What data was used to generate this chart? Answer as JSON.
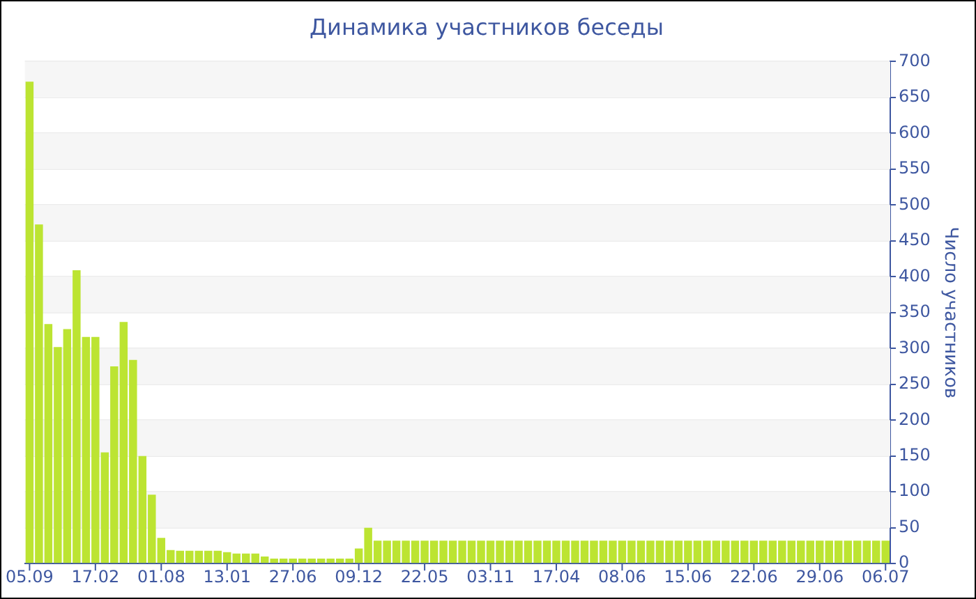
{
  "chart_data": {
    "type": "bar",
    "title": "Динамика участников беседы",
    "ylabel": "Число участников",
    "categories": [
      "05.09",
      null,
      null,
      null,
      null,
      null,
      null,
      "17.02",
      null,
      null,
      null,
      null,
      null,
      null,
      "01.08",
      null,
      null,
      null,
      null,
      null,
      null,
      "13.01",
      null,
      null,
      null,
      null,
      null,
      null,
      "27.06",
      null,
      null,
      null,
      null,
      null,
      null,
      "09.12",
      null,
      null,
      null,
      null,
      null,
      null,
      "22.05",
      null,
      null,
      null,
      null,
      null,
      null,
      "03.11",
      null,
      null,
      null,
      null,
      null,
      null,
      "17.04",
      null,
      null,
      null,
      null,
      null,
      null,
      "08.06",
      null,
      null,
      null,
      null,
      null,
      null,
      "15.06",
      null,
      null,
      null,
      null,
      null,
      null,
      "22.06",
      null,
      null,
      null,
      null,
      null,
      null,
      "29.06",
      null,
      null,
      null,
      null,
      null,
      null,
      "06.07"
    ],
    "values": [
      672,
      473,
      334,
      302,
      327,
      409,
      316,
      316,
      155,
      275,
      337,
      284,
      150,
      96,
      36,
      19,
      18,
      18,
      18,
      18,
      18,
      16,
      14,
      14,
      14,
      10,
      7,
      7,
      7,
      7,
      7,
      7,
      7,
      7,
      7,
      21,
      50,
      32,
      32,
      32,
      32,
      32,
      32,
      32,
      32,
      32,
      32,
      32,
      32,
      32,
      32,
      32,
      32,
      32,
      32,
      32,
      32,
      32,
      32,
      32,
      32,
      32,
      32,
      32,
      32,
      32,
      32,
      32,
      32,
      32,
      32,
      32,
      32,
      32,
      32,
      32,
      32,
      32,
      32,
      32,
      32,
      32,
      32,
      32,
      32,
      32,
      32,
      32,
      32,
      32,
      32,
      32
    ],
    "color": "#bce432",
    "ylim": [
      0,
      700
    ],
    "yticks": [
      0,
      50,
      100,
      150,
      200,
      250,
      300,
      350,
      400,
      450,
      500,
      550,
      600,
      650,
      700
    ],
    "grid": "y",
    "legend": false
  }
}
